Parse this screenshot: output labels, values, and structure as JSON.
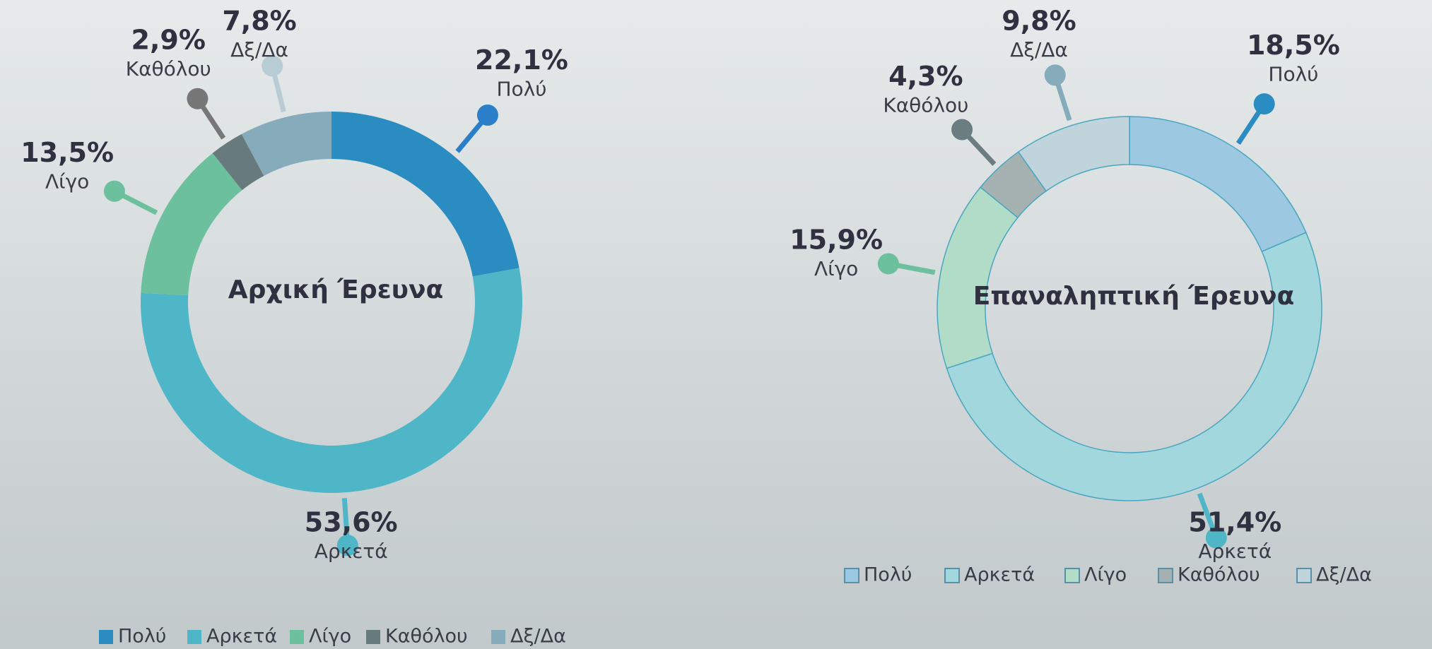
{
  "chart_data": [
    {
      "type": "donut",
      "title": "Αρχική Έρευνα",
      "categories": [
        "Πολύ",
        "Αρκετά",
        "Λίγο",
        "Καθόλου",
        "Δξ/Δα"
      ],
      "values": [
        22.1,
        53.6,
        13.5,
        2.9,
        7.8
      ],
      "value_labels": [
        "22,1%",
        "53,6%",
        "13,5%",
        "2,9%",
        "7,8%"
      ],
      "colors": [
        "#2a8cc0",
        "#4fb6c7",
        "#6dc09e",
        "#677a7d",
        "#86abba"
      ]
    },
    {
      "type": "donut",
      "title": "Επαναληπτική Έρευνα",
      "categories": [
        "Πολύ",
        "Αρκετά",
        "Λίγο",
        "Καθόλου",
        "Δξ/Δα"
      ],
      "values": [
        18.5,
        51.4,
        15.9,
        4.3,
        9.8
      ],
      "value_labels": [
        "18,5%",
        "51,4%",
        "15,9%",
        "4,3%",
        "9,8%"
      ],
      "colors": [
        "#9cc8e2",
        "#a2d7dd",
        "#b1dcc8",
        "#a6b1b2",
        "#bfd5db"
      ]
    }
  ]
}
